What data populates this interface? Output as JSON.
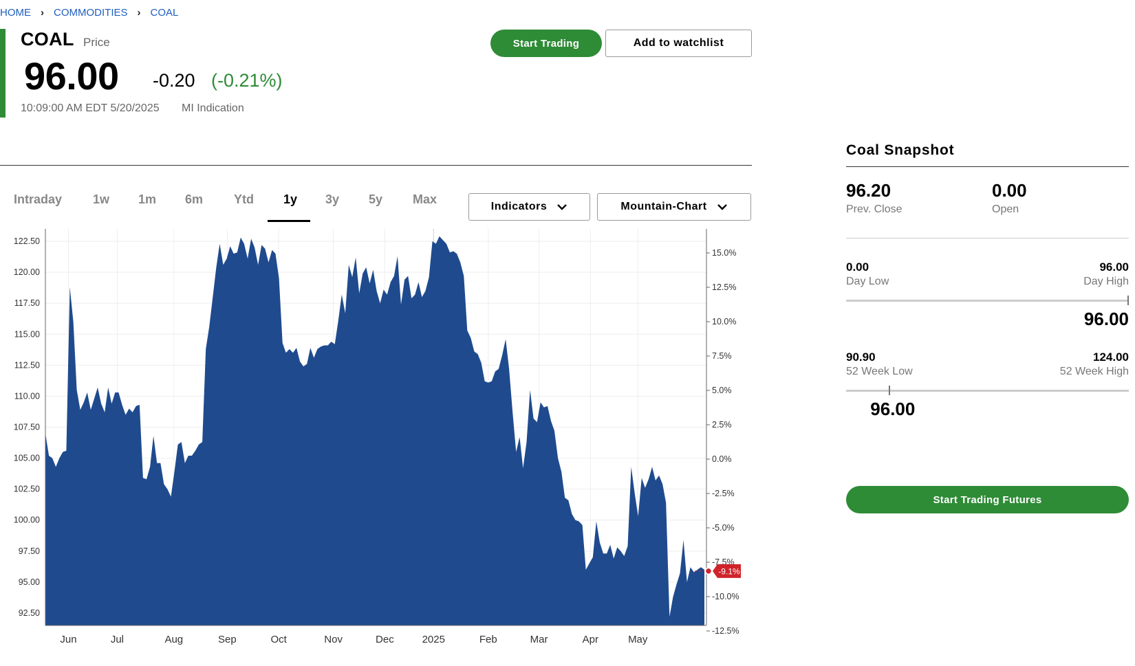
{
  "breadcrumb": [
    "HOME",
    "COMMODITIES",
    "COAL"
  ],
  "quote": {
    "symbol": "COAL",
    "price_label": "Price",
    "price": "96.00",
    "change": "-0.20",
    "change_pct": "(-0.21%)",
    "timestamp": "10:09:00 AM EDT 5/20/2025",
    "indication": "MI Indication"
  },
  "actions": {
    "start_trading": "Start Trading",
    "watchlist": "Add to watchlist"
  },
  "tabs": [
    "Intraday",
    "1w",
    "1m",
    "6m",
    "Ytd",
    "1y",
    "3y",
    "5y",
    "Max"
  ],
  "active_tab": "1y",
  "dropdowns": {
    "indicators": "Indicators",
    "chart_type": "Mountain-Chart"
  },
  "colors": {
    "accent": "#2e8b36",
    "area_fill": "#1f4b8e",
    "marker": "#d0232a",
    "link": "#1f5fbf"
  },
  "chart_data": {
    "type": "area",
    "x_tick_labels": [
      "Jun",
      "Jul",
      "Aug",
      "Sep",
      "Oct",
      "Nov",
      "Dec",
      "2025",
      "Feb",
      "Mar",
      "Apr",
      "May"
    ],
    "y_left_ticks": [
      "122.50",
      "120.00",
      "117.50",
      "115.00",
      "112.50",
      "110.00",
      "107.50",
      "105.00",
      "102.50",
      "100.00",
      "97.50",
      "95.00",
      "92.50"
    ],
    "y_right_ticks": [
      "15.0%",
      "12.5%",
      "10.0%",
      "7.5%",
      "5.0%",
      "2.5%",
      "0.0%",
      "-2.5%",
      "-5.0%",
      "-7.5%",
      "-10.0%",
      "-12.5%"
    ],
    "ylim": [
      91.5,
      123.5
    ],
    "marker_label": "-9.1%",
    "series": [
      {
        "name": "COAL",
        "values": [
          107.0,
          105.2,
          105.0,
          104.3,
          105.0,
          105.5,
          105.6,
          118.8,
          116.0,
          110.5,
          108.9,
          109.5,
          110.3,
          108.9,
          109.8,
          110.7,
          109.4,
          108.7,
          110.7,
          109.4,
          110.3,
          110.3,
          109.3,
          108.5,
          109.0,
          108.7,
          109.2,
          109.3,
          103.4,
          103.3,
          104.3,
          106.8,
          104.6,
          104.6,
          102.9,
          102.5,
          101.9,
          103.9,
          106.1,
          106.3,
          104.6,
          105.2,
          105.2,
          105.6,
          106.1,
          106.3,
          113.8,
          115.6,
          118.0,
          120.4,
          122.3,
          120.6,
          121.1,
          122.1,
          121.5,
          121.6,
          122.8,
          122.3,
          121.1,
          122.7,
          122.0,
          120.6,
          122.2,
          121.9,
          120.8,
          121.8,
          121.5,
          119.5,
          114.3,
          113.5,
          113.8,
          113.5,
          113.9,
          112.8,
          112.4,
          112.6,
          113.9,
          113.1,
          113.8,
          114.0,
          114.1,
          114.1,
          114.4,
          114.2,
          116.1,
          118.2,
          116.7,
          120.6,
          119.6,
          121.2,
          118.3,
          119.9,
          120.4,
          119.1,
          120.2,
          118.5,
          117.5,
          118.6,
          118.2,
          119.2,
          119.7,
          121.3,
          117.4,
          119.4,
          119.7,
          117.9,
          118.2,
          119.2,
          118.0,
          118.5,
          119.6,
          122.5,
          122.3,
          122.9,
          122.6,
          122.3,
          121.6,
          121.7,
          121.5,
          120.8,
          119.7,
          115.3,
          114.7,
          113.6,
          113.4,
          112.7,
          111.2,
          111.1,
          111.2,
          112.0,
          112.2,
          113.3,
          114.6,
          112.2,
          108.7,
          105.5,
          106.7,
          104.2,
          106.3,
          110.5,
          108.2,
          107.9,
          109.5,
          109.1,
          109.2,
          108.0,
          107.2,
          105.0,
          103.9,
          101.8,
          101.6,
          100.5,
          100.0,
          99.9,
          99.6,
          96.0,
          96.5,
          97.0,
          99.9,
          98.2,
          97.3,
          97.3,
          98.0,
          96.9,
          97.8,
          97.5,
          97.1,
          97.9,
          104.3,
          102.2,
          100.3,
          103.4,
          102.6,
          103.3,
          104.3,
          103.2,
          103.6,
          102.9,
          101.4,
          92.2,
          93.8,
          94.8,
          95.7,
          98.4,
          95.0,
          96.2,
          95.8,
          96.0,
          96.2,
          96.0
        ]
      }
    ]
  },
  "snapshot": {
    "title": "Coal Snapshot",
    "prev_close": "96.20",
    "prev_close_label": "Prev. Close",
    "open": "0.00",
    "open_label": "Open",
    "day_low": "0.00",
    "day_low_label": "Day Low",
    "day_high": "96.00",
    "day_high_label": "Day High",
    "day_current": "96.00",
    "day_position": 1.0,
    "wk_low": "90.90",
    "wk_low_label": "52 Week Low",
    "wk_high": "124.00",
    "wk_high_label": "52 Week High",
    "wk_current": "96.00",
    "wk_position": 0.154,
    "futures_button": "Start Trading Futures"
  }
}
